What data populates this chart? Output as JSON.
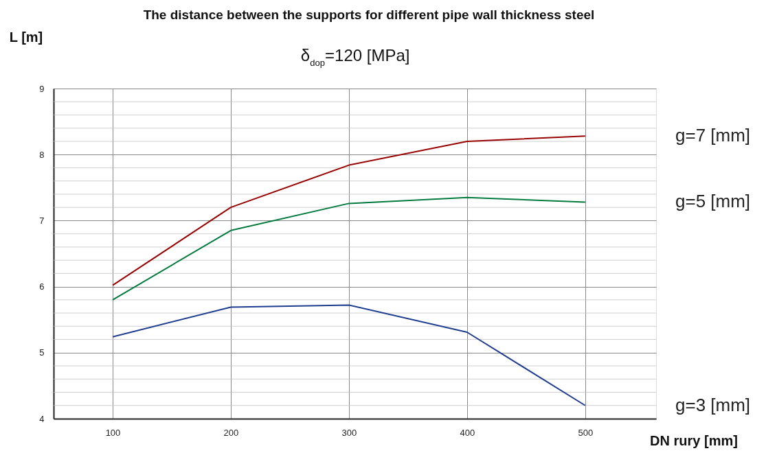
{
  "chart_data": {
    "type": "line",
    "title": "The distance between the supports for different pipe wall thickness steel",
    "subtitle": "δ$_{dop}$=120 [MPa]",
    "xlabel": "DN rury [mm]",
    "ylabel": "L [m]",
    "x": [
      100,
      200,
      300,
      400,
      500
    ],
    "series": [
      {
        "name": "g=7 [mm]",
        "color": "#990000",
        "values": [
          6.02,
          7.2,
          7.84,
          8.2,
          8.28
        ]
      },
      {
        "name": "g=5 [mm]",
        "color": "#007a3d",
        "values": [
          5.8,
          6.85,
          7.26,
          7.35,
          7.28
        ]
      },
      {
        "name": "g=3 [mm]",
        "color": "#1f3d8f",
        "values": [
          5.24,
          5.69,
          5.72,
          5.31,
          4.2
        ]
      }
    ],
    "xlim": [
      50,
      560
    ],
    "ylim": [
      4,
      9
    ],
    "xticks": [
      100,
      200,
      300,
      400,
      500
    ],
    "yticks": [
      4,
      5,
      6,
      7,
      8,
      9
    ],
    "grid": true,
    "legend": false,
    "marker": "none",
    "line_style": "solid"
  }
}
